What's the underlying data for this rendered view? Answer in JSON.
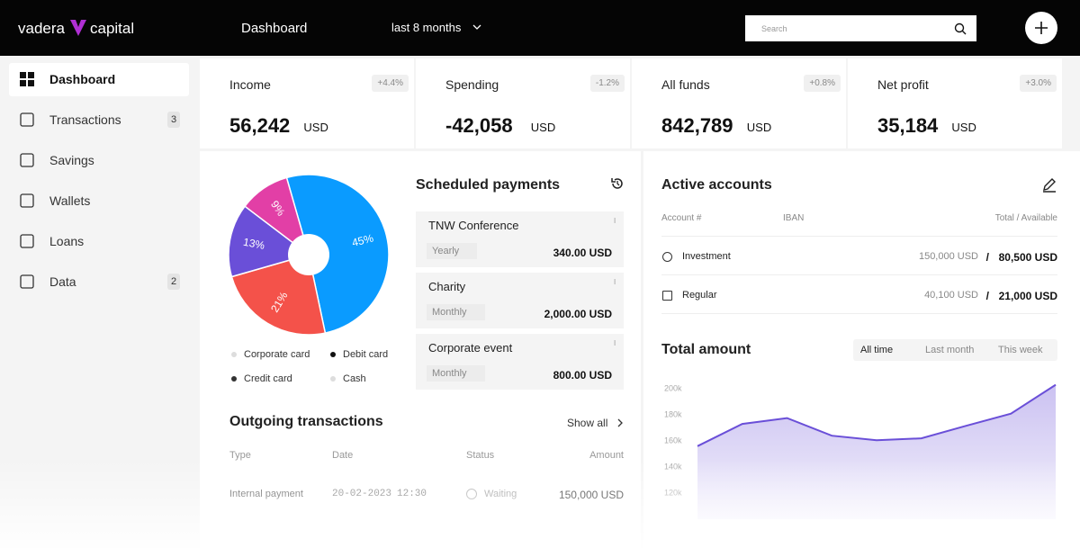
{
  "header": {
    "brand_left": "vadera",
    "brand_right": "capital",
    "page_title": "Dashboard",
    "period": "last 8 months",
    "search_placeholder": "Search"
  },
  "sidebar": [
    {
      "label": "Dashboard"
    },
    {
      "label": "Transactions",
      "badge": 3
    },
    {
      "label": "Savings"
    },
    {
      "label": "Wallets"
    },
    {
      "label": "Loans"
    },
    {
      "label": "Data",
      "badge": 2
    }
  ],
  "stats": [
    {
      "label": "Income",
      "change": "+4.4%",
      "value": "56,242",
      "unit": "USD"
    },
    {
      "label": "Spending",
      "change": "-1.2%",
      "value": "-42,058",
      "unit": "USD"
    },
    {
      "label": "All funds",
      "change": "+0.8%",
      "value": "842,789",
      "unit": "USD"
    },
    {
      "label": "Net profit",
      "change": "+3.0%",
      "value": "35,184",
      "unit": "USD"
    }
  ],
  "pie": {
    "values": [
      45,
      21,
      13,
      9
    ],
    "value_labels": [
      "45%",
      "21%",
      "13%",
      "9%"
    ],
    "colors": [
      "#0a9bff",
      "#f4524a",
      "#6a4fd8",
      "#e23fa6"
    ],
    "legend": [
      "Corporate card",
      "Debit card",
      "Credit card",
      "Cash"
    ]
  },
  "scheduled_payments": {
    "title": "Scheduled payments",
    "items": [
      {
        "name": "TNW Conference",
        "frequency": "Yearly",
        "amount": "340.00 USD"
      },
      {
        "name": "Charity",
        "frequency": "Monthly",
        "amount": "2,000.00 USD"
      },
      {
        "name": "Corporate event",
        "frequency": "Monthly",
        "amount": "800.00 USD"
      }
    ]
  },
  "outgoing": {
    "title": "Outgoing transactions",
    "show_all": "Show all",
    "columns": [
      "Type",
      "Date",
      "Status",
      "Amount"
    ],
    "rows": [
      [
        "Internal payment",
        "20-02-2023",
        "12:30",
        "Waiting",
        "150,000 USD"
      ]
    ]
  },
  "accounts": {
    "title": "Active accounts",
    "columns": [
      "Account #",
      "IBAN",
      "Total / Available"
    ],
    "rows": [
      {
        "name": "Investment",
        "total": "150,000 USD",
        "available": "80,500 USD"
      },
      {
        "name": "Regular",
        "total": "40,100 USD",
        "available": "21,000 USD"
      }
    ]
  },
  "total_amount": {
    "title": "Total amount",
    "tabs": [
      "All time",
      "Last month",
      "This week"
    ],
    "color": "#6a4fd8",
    "values": [
      156000,
      173000,
      177500,
      164000,
      160500,
      162000,
      171600,
      180900,
      203000
    ],
    "ylim": [
      100000,
      205000
    ],
    "yticks": [
      {
        "value": 120000,
        "label": "120k"
      },
      {
        "value": 140000,
        "label": "140k"
      },
      {
        "value": 160000,
        "label": "160k"
      },
      {
        "value": 180000,
        "label": "180k"
      },
      {
        "value": 200000,
        "label": "200k"
      }
    ]
  }
}
